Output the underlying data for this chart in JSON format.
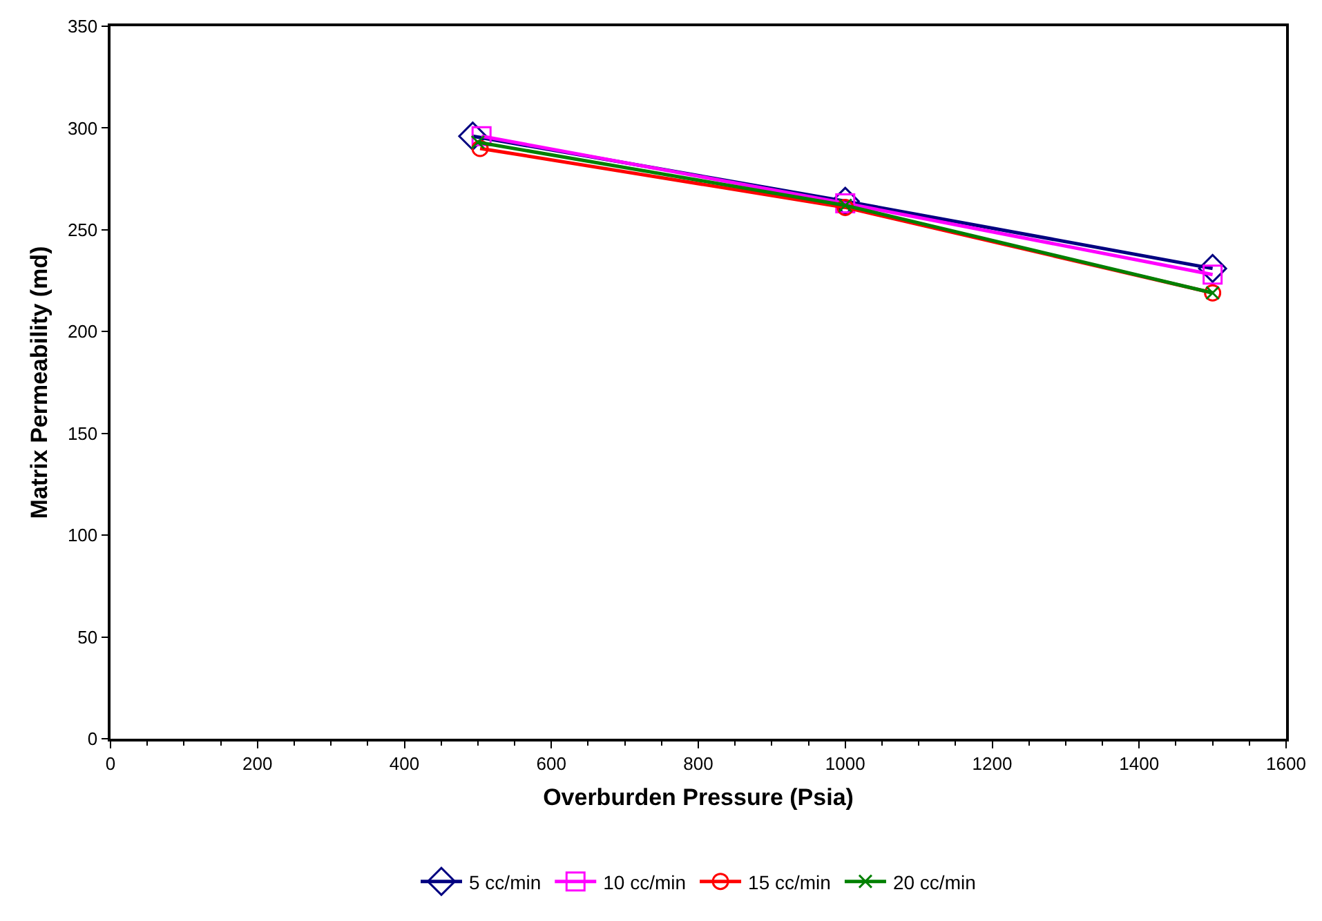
{
  "chart_data": {
    "type": "line",
    "xlabel": "Overburden Pressure (Psia)",
    "ylabel": "Matrix Permeability (md)",
    "xlim": [
      0,
      1600
    ],
    "xticks": [
      0,
      200,
      400,
      600,
      800,
      1000,
      1200,
      1400,
      1600
    ],
    "ylim": [
      0,
      350
    ],
    "yticks": [
      0,
      50,
      100,
      150,
      200,
      250,
      300,
      350
    ],
    "grid": false,
    "legend": "bottom",
    "series": [
      {
        "name": "5 cc/min",
        "color": "#000080",
        "marker": "diamond",
        "x": [
          493,
          1000,
          1500
        ],
        "values": [
          296,
          264,
          231
        ]
      },
      {
        "name": "10 cc/min",
        "color": "#ff00ff",
        "marker": "square",
        "x": [
          505,
          1000,
          1500
        ],
        "values": [
          296,
          263,
          228
        ]
      },
      {
        "name": "15 cc/min",
        "color": "#ff0000",
        "marker": "circle",
        "x": [
          503,
          1000,
          1500
        ],
        "values": [
          290,
          261,
          219
        ]
      },
      {
        "name": "20 cc/min",
        "color": "#008000",
        "marker": "cross",
        "x": [
          500,
          1000,
          1500
        ],
        "values": [
          293,
          262,
          219
        ]
      }
    ]
  }
}
